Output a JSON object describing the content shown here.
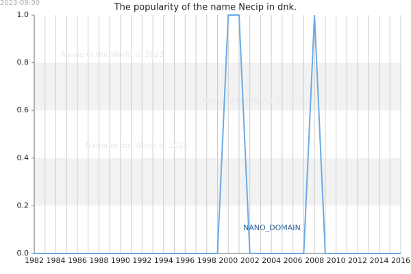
{
  "chart_data": {
    "type": "line",
    "title": "The popularity of the name Necip in dnk.",
    "date_label": "2023-09-30",
    "watermarks": [
      "Name of the World © 2023",
      "Name of the World © 2023",
      "Name of the World © 2023"
    ],
    "domain_label": "NANO_DOMAIN",
    "x": [
      1982,
      1983,
      1984,
      1985,
      1986,
      1987,
      1988,
      1989,
      1990,
      1991,
      1992,
      1993,
      1994,
      1995,
      1996,
      1997,
      1998,
      1999,
      2000,
      2001,
      2002,
      2003,
      2004,
      2005,
      2006,
      2007,
      2008,
      2009,
      2010,
      2011,
      2012,
      2013,
      2014,
      2015,
      2016
    ],
    "series": [
      {
        "color": "#6aaae6",
        "values": [
          0,
          0,
          0,
          0,
          0,
          0,
          0,
          0,
          0,
          0,
          0,
          0,
          0,
          0,
          0,
          0,
          0,
          0,
          1,
          1,
          0,
          0,
          0,
          0,
          0,
          0,
          1,
          0,
          0,
          0,
          0,
          0,
          0,
          0,
          0
        ]
      }
    ],
    "xlim": [
      1982,
      2016
    ],
    "xticks": [
      1982,
      1984,
      1986,
      1988,
      1990,
      1992,
      1994,
      1996,
      1998,
      2000,
      2002,
      2004,
      2006,
      2008,
      2010,
      2012,
      2014,
      2016
    ],
    "x_minor_ticks": [
      1983,
      1985,
      1987,
      1989,
      1991,
      1993,
      1995,
      1997,
      1999,
      2001,
      2003,
      2005,
      2007,
      2009,
      2011,
      2013,
      2015
    ],
    "ylim": [
      0,
      1
    ],
    "yticks": [
      {
        "value": 0,
        "label": "0.0"
      },
      0.2,
      0.4,
      0.6,
      0.8,
      {
        "value": 1,
        "label": "1.0"
      }
    ],
    "bands": [
      [
        0.2,
        0.4
      ],
      [
        0.6,
        0.8
      ]
    ],
    "grid": true
  }
}
